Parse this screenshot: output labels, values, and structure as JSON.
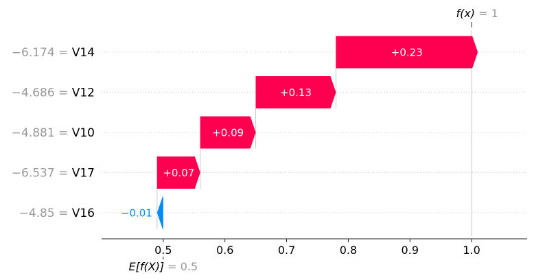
{
  "chart_data": {
    "type": "waterfall",
    "base_value": 0.5,
    "output_value": 1,
    "base_label_prefix": "E[f(X)]",
    "base_label_value": "0.5",
    "output_label_prefix": "f(x)",
    "output_label_value": "1",
    "features": [
      {
        "value": "−6.174",
        "name": "V14",
        "contribution": 0.23,
        "label": "+0.23"
      },
      {
        "value": "−4.686",
        "name": "V12",
        "contribution": 0.13,
        "label": "+0.13"
      },
      {
        "value": "−4.881",
        "name": "V10",
        "contribution": 0.09,
        "label": "+0.09"
      },
      {
        "value": "−6.537",
        "name": "V17",
        "contribution": 0.07,
        "label": "+0.07"
      },
      {
        "value": "−4.85",
        "name": "V16",
        "contribution": -0.01,
        "label": "−0.01"
      }
    ],
    "x_ticks": [
      0.5,
      0.6,
      0.7,
      0.8,
      0.9,
      1.0
    ],
    "x_tick_labels": [
      "0.5",
      "0.6",
      "0.7",
      "0.8",
      "0.9",
      "1.0"
    ],
    "xlim": [
      0.4,
      1.09
    ],
    "positive_color": "#ff0051",
    "negative_color": "#008bfb",
    "grid": true
  }
}
